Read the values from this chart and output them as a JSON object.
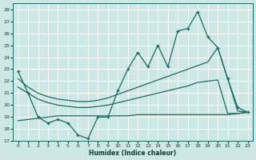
{
  "xlabel": "Humidex (Indice chaleur)",
  "xlim": [
    -0.5,
    23.5
  ],
  "ylim": [
    17,
    28.5
  ],
  "yticks": [
    17,
    18,
    19,
    20,
    21,
    22,
    23,
    24,
    25,
    26,
    27,
    28
  ],
  "xticks": [
    0,
    1,
    2,
    3,
    4,
    5,
    6,
    7,
    8,
    9,
    10,
    11,
    12,
    13,
    14,
    15,
    16,
    17,
    18,
    19,
    20,
    21,
    22,
    23
  ],
  "bg_color": "#cde8e4",
  "line_color": "#1a6b60",
  "grid_color": "#ffffff",
  "jagged_x": [
    0,
    1,
    2,
    3,
    4,
    5,
    6,
    7,
    8,
    9,
    10,
    11,
    12,
    13,
    14,
    15,
    16,
    17,
    18,
    19,
    20,
    21,
    22,
    23
  ],
  "jagged_y": [
    22.8,
    21.0,
    19.0,
    18.5,
    18.8,
    18.5,
    17.5,
    17.2,
    19.0,
    19.0,
    21.2,
    23.0,
    24.4,
    23.2,
    25.0,
    23.2,
    26.2,
    26.4,
    27.8,
    25.7,
    24.8,
    22.2,
    19.8,
    19.4
  ],
  "trend_upper_x": [
    0,
    1,
    2,
    3,
    4,
    5,
    6,
    7,
    8,
    9,
    10,
    11,
    12,
    13,
    14,
    15,
    16,
    17,
    18,
    19,
    20,
    21,
    22,
    23
  ],
  "trend_upper_y": [
    22.2,
    21.5,
    21.0,
    20.7,
    20.5,
    20.4,
    20.3,
    20.3,
    20.4,
    20.6,
    20.9,
    21.2,
    21.5,
    21.8,
    22.1,
    22.4,
    22.7,
    23.0,
    23.3,
    23.6,
    24.8,
    22.2,
    19.5,
    19.4
  ],
  "trend_lower_x": [
    0,
    1,
    2,
    3,
    4,
    5,
    6,
    7,
    8,
    9,
    10,
    11,
    12,
    13,
    14,
    15,
    16,
    17,
    18,
    19,
    20,
    21,
    22,
    23
  ],
  "trend_lower_y": [
    21.5,
    21.0,
    20.5,
    20.2,
    20.0,
    19.9,
    19.8,
    19.8,
    19.9,
    20.0,
    20.2,
    20.4,
    20.6,
    20.8,
    21.0,
    21.2,
    21.4,
    21.6,
    21.9,
    22.0,
    22.1,
    19.3,
    19.3,
    19.4
  ],
  "flat_x": [
    0,
    1,
    2,
    3,
    4,
    5,
    6,
    7,
    8,
    9,
    10,
    11,
    12,
    13,
    14,
    15,
    16,
    17,
    18,
    19,
    20,
    21,
    22,
    23
  ],
  "flat_y": [
    18.7,
    18.8,
    18.9,
    19.0,
    19.1,
    19.1,
    19.1,
    19.1,
    19.1,
    19.1,
    19.1,
    19.1,
    19.2,
    19.2,
    19.2,
    19.2,
    19.2,
    19.2,
    19.2,
    19.2,
    19.2,
    19.2,
    19.3,
    19.4
  ]
}
